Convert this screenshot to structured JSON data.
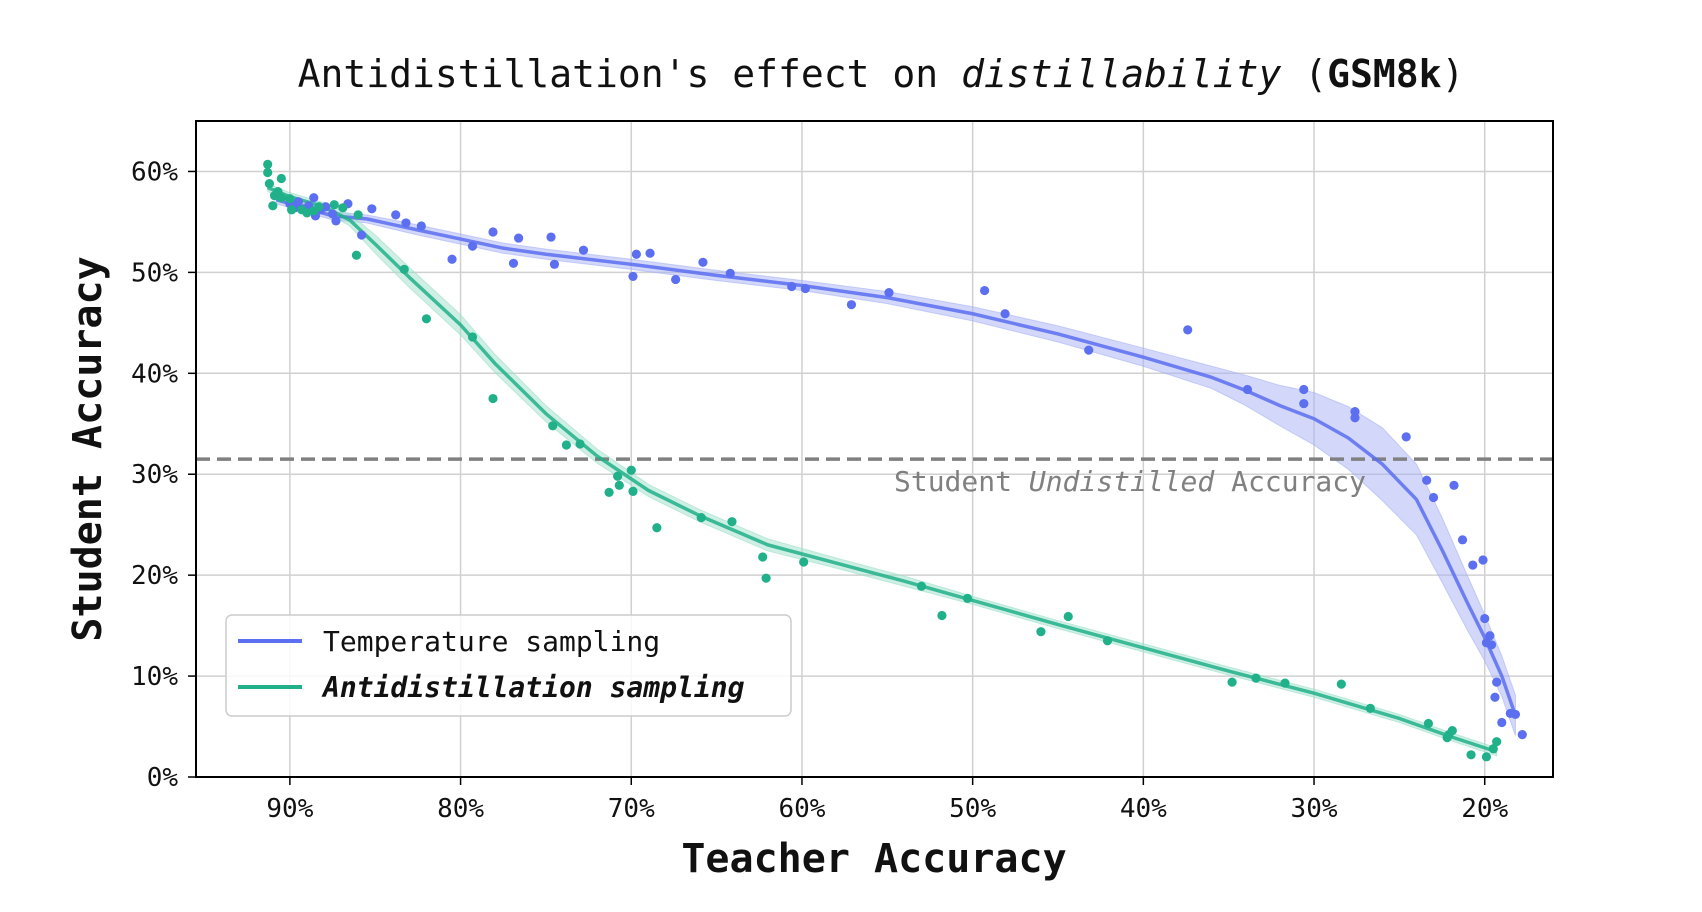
{
  "chart_data": {
    "type": "scatter",
    "title": {
      "prefix": "Antidistillation's effect on ",
      "italic": "distillability",
      "middle": " (",
      "bold": "GSM8k",
      "suffix": ")"
    },
    "xlabel": "Teacher Accuracy",
    "ylabel": "Student Accuracy",
    "x_inverted": true,
    "xlim": [
      95.5,
      16.0
    ],
    "ylim": [
      0,
      65
    ],
    "xticks": [
      90,
      80,
      70,
      60,
      50,
      40,
      30,
      20
    ],
    "xtick_labels": [
      "90%",
      "80%",
      "70%",
      "60%",
      "50%",
      "40%",
      "30%",
      "20%"
    ],
    "yticks": [
      0,
      10,
      20,
      30,
      40,
      50,
      60
    ],
    "ytick_labels": [
      "0%",
      "10%",
      "20%",
      "30%",
      "40%",
      "50%",
      "60%"
    ],
    "grid": true,
    "legend_position": "lower-left",
    "reference_line": {
      "y": 31.5,
      "color": "#808080",
      "label_prefix": "Student ",
      "label_italic": "Undistilled",
      "label_suffix": " Accuracy"
    },
    "series": [
      {
        "name": "Temperature sampling",
        "name_style": "normal",
        "color": "#5b6ff0",
        "band_color": "#a8b2f5",
        "points": [
          [
            90.0,
            56.8
          ],
          [
            89.7,
            56.4
          ],
          [
            89.5,
            57.0
          ],
          [
            89.2,
            56.3
          ],
          [
            88.9,
            56.6
          ],
          [
            88.6,
            57.4
          ],
          [
            88.5,
            55.6
          ],
          [
            88.2,
            56.2
          ],
          [
            87.9,
            56.5
          ],
          [
            87.5,
            55.8
          ],
          [
            87.3,
            55.1
          ],
          [
            86.6,
            56.8
          ],
          [
            85.8,
            53.7
          ],
          [
            85.2,
            56.3
          ],
          [
            83.8,
            55.7
          ],
          [
            83.2,
            54.9
          ],
          [
            82.3,
            54.6
          ],
          [
            80.5,
            51.3
          ],
          [
            79.3,
            52.6
          ],
          [
            78.1,
            54.0
          ],
          [
            76.9,
            50.9
          ],
          [
            76.6,
            53.4
          ],
          [
            74.7,
            53.5
          ],
          [
            74.5,
            50.8
          ],
          [
            72.8,
            52.2
          ],
          [
            69.9,
            49.6
          ],
          [
            69.7,
            51.8
          ],
          [
            68.9,
            51.9
          ],
          [
            67.4,
            49.3
          ],
          [
            65.8,
            51.0
          ],
          [
            64.2,
            49.9
          ],
          [
            60.6,
            48.6
          ],
          [
            59.8,
            48.4
          ],
          [
            57.1,
            46.8
          ],
          [
            54.9,
            48.0
          ],
          [
            49.3,
            48.2
          ],
          [
            48.1,
            45.9
          ],
          [
            43.2,
            42.3
          ],
          [
            37.4,
            44.3
          ],
          [
            33.9,
            38.4
          ],
          [
            30.6,
            38.4
          ],
          [
            30.6,
            37.0
          ],
          [
            27.6,
            36.2
          ],
          [
            27.6,
            35.6
          ],
          [
            24.6,
            33.7
          ],
          [
            23.4,
            29.4
          ],
          [
            23.0,
            27.7
          ],
          [
            21.8,
            28.9
          ],
          [
            21.3,
            23.5
          ],
          [
            20.7,
            21.0
          ],
          [
            20.1,
            21.5
          ],
          [
            20.0,
            15.7
          ],
          [
            19.9,
            13.3
          ],
          [
            19.7,
            14.0
          ],
          [
            19.6,
            13.1
          ],
          [
            19.3,
            9.4
          ],
          [
            19.4,
            7.9
          ],
          [
            19.0,
            5.4
          ],
          [
            18.5,
            6.3
          ],
          [
            18.2,
            6.2
          ],
          [
            17.8,
            4.2
          ]
        ],
        "fit": [
          [
            90.8,
            57.2
          ],
          [
            87.5,
            55.6
          ],
          [
            85.5,
            55.3
          ],
          [
            82.5,
            54.2
          ],
          [
            80.0,
            53.3
          ],
          [
            77.5,
            52.4
          ],
          [
            75.0,
            51.8
          ],
          [
            70.0,
            50.8
          ],
          [
            65.0,
            49.7
          ],
          [
            60.0,
            48.7
          ],
          [
            55.0,
            47.5
          ],
          [
            50.0,
            45.9
          ],
          [
            45.0,
            43.9
          ],
          [
            40.0,
            41.6
          ],
          [
            36.0,
            39.6
          ],
          [
            34.0,
            38.3
          ],
          [
            32.0,
            36.8
          ],
          [
            30.0,
            35.5
          ],
          [
            28.0,
            33.6
          ],
          [
            26.0,
            31.0
          ],
          [
            24.0,
            27.5
          ],
          [
            22.5,
            22.5
          ],
          [
            21.0,
            17.2
          ],
          [
            20.0,
            13.8
          ],
          [
            19.0,
            10.0
          ],
          [
            18.2,
            6.1
          ]
        ],
        "band_half_width": [
          0.4,
          0.4,
          0.4,
          0.5,
          0.5,
          0.5,
          0.5,
          0.5,
          0.5,
          0.5,
          0.6,
          0.7,
          0.8,
          0.9,
          1.1,
          1.5,
          2.0,
          2.6,
          3.1,
          3.6,
          3.5,
          3.2,
          2.7,
          2.3,
          2.0,
          2.0
        ]
      },
      {
        "name": "Antidistillation sampling",
        "name_style": "bold-italic",
        "color": "#20b08a",
        "band_color": "#9fe0cb",
        "points": [
          [
            91.3,
            60.7
          ],
          [
            91.3,
            59.9
          ],
          [
            91.2,
            58.8
          ],
          [
            91.0,
            56.6
          ],
          [
            90.9,
            57.6
          ],
          [
            90.7,
            58.0
          ],
          [
            90.5,
            57.4
          ],
          [
            90.5,
            59.3
          ],
          [
            90.0,
            57.3
          ],
          [
            89.9,
            56.2
          ],
          [
            89.3,
            56.2
          ],
          [
            89.0,
            55.9
          ],
          [
            88.6,
            56.1
          ],
          [
            88.3,
            56.5
          ],
          [
            87.4,
            56.7
          ],
          [
            86.9,
            56.4
          ],
          [
            86.1,
            51.7
          ],
          [
            86.0,
            55.7
          ],
          [
            83.3,
            50.3
          ],
          [
            82.0,
            45.4
          ],
          [
            79.3,
            43.6
          ],
          [
            78.1,
            37.5
          ],
          [
            74.6,
            34.8
          ],
          [
            73.8,
            32.9
          ],
          [
            73.0,
            33.0
          ],
          [
            71.3,
            28.2
          ],
          [
            70.8,
            29.8
          ],
          [
            70.7,
            28.9
          ],
          [
            70.0,
            30.4
          ],
          [
            69.9,
            28.3
          ],
          [
            68.5,
            24.7
          ],
          [
            65.9,
            25.7
          ],
          [
            64.1,
            25.3
          ],
          [
            62.3,
            21.8
          ],
          [
            62.1,
            19.7
          ],
          [
            59.9,
            21.3
          ],
          [
            53.0,
            18.9
          ],
          [
            51.8,
            16.0
          ],
          [
            50.3,
            17.7
          ],
          [
            46.0,
            14.4
          ],
          [
            44.4,
            15.9
          ],
          [
            42.1,
            13.5
          ],
          [
            34.8,
            9.4
          ],
          [
            33.4,
            9.8
          ],
          [
            31.7,
            9.3
          ],
          [
            28.4,
            9.2
          ],
          [
            26.7,
            6.8
          ],
          [
            23.3,
            5.3
          ],
          [
            22.1,
            4.2
          ],
          [
            22.2,
            3.9
          ],
          [
            21.9,
            4.6
          ],
          [
            20.8,
            2.2
          ],
          [
            19.9,
            2.0
          ],
          [
            19.5,
            2.8
          ],
          [
            19.3,
            3.5
          ]
        ],
        "fit": [
          [
            91.3,
            58.4
          ],
          [
            90.0,
            57.5
          ],
          [
            88.0,
            56.5
          ],
          [
            86.5,
            55.2
          ],
          [
            85.0,
            52.8
          ],
          [
            83.0,
            49.5
          ],
          [
            80.0,
            44.8
          ],
          [
            78.0,
            41.0
          ],
          [
            75.0,
            36.0
          ],
          [
            72.0,
            31.8
          ],
          [
            69.0,
            28.4
          ],
          [
            66.0,
            25.9
          ],
          [
            62.0,
            23.0
          ],
          [
            58.0,
            21.2
          ],
          [
            54.0,
            19.4
          ],
          [
            50.0,
            17.5
          ],
          [
            45.0,
            15.1
          ],
          [
            40.0,
            12.8
          ],
          [
            35.0,
            10.5
          ],
          [
            30.0,
            8.3
          ],
          [
            25.0,
            5.8
          ],
          [
            22.0,
            4.0
          ],
          [
            19.3,
            2.5
          ]
        ],
        "band_half_width": [
          0.4,
          0.4,
          0.4,
          0.6,
          0.9,
          1.0,
          1.0,
          0.9,
          0.8,
          0.7,
          0.6,
          0.6,
          0.6,
          0.5,
          0.5,
          0.4,
          0.4,
          0.4,
          0.4,
          0.4,
          0.4,
          0.4,
          0.4
        ]
      }
    ]
  }
}
